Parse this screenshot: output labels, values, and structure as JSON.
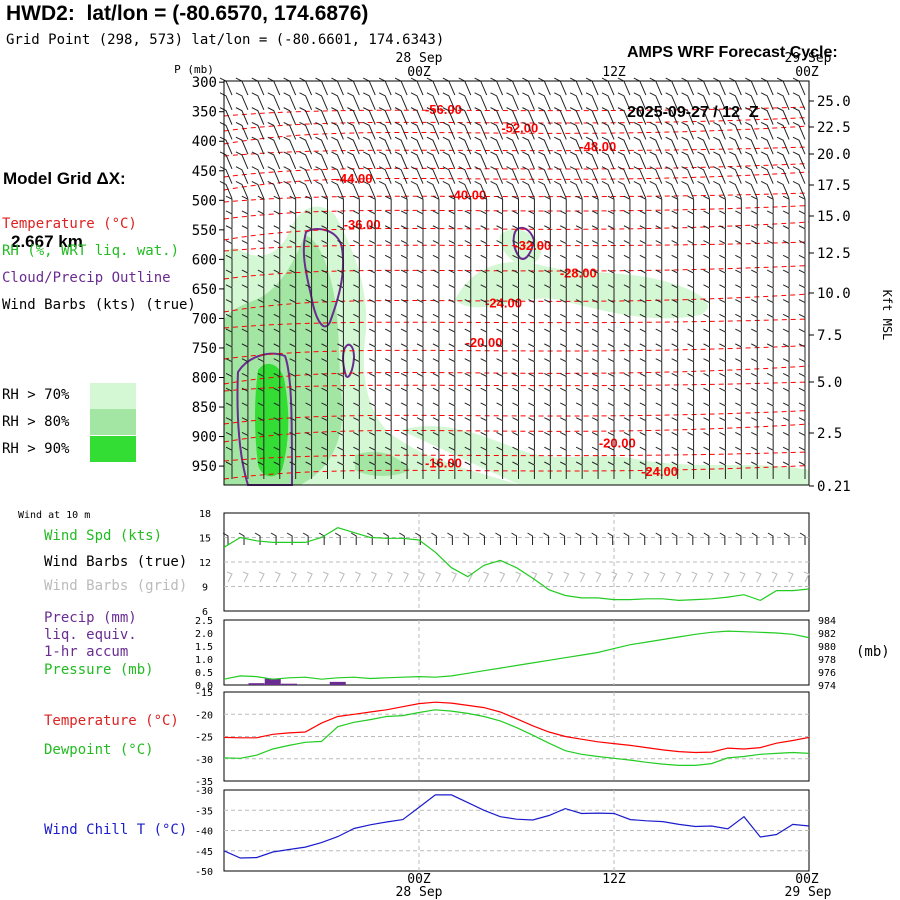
{
  "header": {
    "title": "HWD2:  lat/lon = (-80.6570, 174.6876)",
    "grid_point": "Grid Point (298, 573) lat/lon = (-80.6601, 174.6343)",
    "cycle_line1": "AMPS WRF Forecast Cycle:",
    "cycle_line2": "2025-09-27 / 12  Z",
    "model_grid_line1": "Model Grid ΔX:",
    "model_grid_line2": "2.667 km"
  },
  "legend": {
    "temperature": "Temperature (°C)",
    "rh": "RH (%, WRT liq. wat.)",
    "cloud": "Cloud/Precip Outline",
    "wind": "Wind Barbs (kts) (true)",
    "rh70": "RH > 70%",
    "rh80": "RH > 80%",
    "rh90": "RH > 90%"
  },
  "colors": {
    "temperature": "#ff0000",
    "rh_text": "#22bb22",
    "cloud": "#6a2c91",
    "rh70": "#d4f7d4",
    "rh80": "#a3e6a3",
    "rh90": "#33dd33",
    "dewpoint": "#22cc22",
    "windchill": "#1c1ccc",
    "grid_gray": "#bbbbbb"
  },
  "time_axis": {
    "top_date_left": "28 Sep",
    "top_date_right": "29 Sep",
    "ticks": [
      "00Z",
      "12Z",
      "00Z"
    ],
    "bottom_date_left": "28 Sep",
    "bottom_date_right": "29 Sep",
    "pressure_header": "P (mb)"
  },
  "panels": {
    "wind_at_10m": "Wind at 10 m",
    "wind_spd": "Wind Spd (kts)",
    "wind_barbs_true": "Wind Barbs (true)",
    "wind_barbs_grid": "Wind Barbs (grid)",
    "precip_l1": "Precip (mm)",
    "precip_l2": "liq. equiv.",
    "precip_l3": "1-hr accum",
    "pressure": "Pressure (mb)",
    "pressure_unit": "(mb)",
    "temperature": "Temperature (°C)",
    "dewpoint": "Dewpoint (°C)",
    "windchill": "Wind Chill T (°C)",
    "kft_label": "Kft MSL"
  },
  "chart_data": [
    {
      "type": "heatmap",
      "x_range_hours": [
        -12,
        24
      ],
      "y_label": "P (mb)",
      "y_ticks": [
        300,
        350,
        400,
        450,
        500,
        550,
        600,
        650,
        700,
        750,
        800,
        850,
        900,
        950
      ],
      "right_ticks": [
        "25.0",
        "22.5",
        "20.0",
        "17.5",
        "15.0",
        "12.5",
        "10.0",
        "7.5",
        "5.0",
        "2.5",
        "0.21"
      ],
      "right_label": "Kft MSL",
      "isotherm_labels": [
        {
          "label": "-56.00",
          "t": 1.5,
          "p": 347
        },
        {
          "label": "-52.00",
          "t": 6.2,
          "p": 378
        },
        {
          "label": "-48.00",
          "t": 11.0,
          "p": 410
        },
        {
          "label": "-44.00",
          "t": -4.0,
          "p": 464
        },
        {
          "label": "-40.00",
          "t": 3.0,
          "p": 492
        },
        {
          "label": "-36.00",
          "t": -3.5,
          "p": 542
        },
        {
          "label": "-32.00",
          "t": 7.0,
          "p": 577
        },
        {
          "label": "-28.00",
          "t": 9.8,
          "p": 624
        },
        {
          "label": "-24.00",
          "t": 5.2,
          "p": 675
        },
        {
          "label": "-20.00",
          "t": 4.0,
          "p": 742
        },
        {
          "label": "-20.00",
          "t": 12.2,
          "p": 912
        },
        {
          "label": "-16.00",
          "t": 1.5,
          "p": 946
        },
        {
          "label": "-24.00",
          "t": 14.8,
          "p": 960
        }
      ]
    },
    {
      "type": "line",
      "title": "Wind Spd (kts)",
      "x_hours": [
        -12,
        -11,
        -10,
        -9,
        -8,
        -7,
        -6,
        -5,
        -4,
        -3,
        -2,
        -1,
        0,
        1,
        2,
        3,
        4,
        5,
        6,
        7,
        8,
        9,
        10,
        11,
        12,
        13,
        14,
        15,
        16,
        17,
        18,
        19,
        20,
        21,
        22,
        23,
        24
      ],
      "series": [
        {
          "name": "Wind Spd (kts)",
          "values": [
            13.8,
            15.0,
            14.6,
            14.4,
            14.4,
            14.4,
            15.0,
            16.2,
            15.6,
            15.0,
            14.9,
            14.9,
            14.7,
            13.2,
            11.3,
            10.2,
            11.6,
            12.2,
            11.3,
            10.0,
            8.6,
            7.9,
            7.6,
            7.6,
            7.4,
            7.4,
            7.5,
            7.5,
            7.3,
            7.4,
            7.5,
            7.7,
            8.0,
            7.3,
            8.5,
            8.5,
            8.7
          ]
        }
      ],
      "ylim": [
        6,
        18
      ],
      "y_ticks": [
        6,
        9,
        12,
        15,
        18
      ]
    },
    {
      "type": "bar",
      "title": "Precip (mm)",
      "x_hours": [
        -11,
        -10,
        -9,
        -8,
        -7,
        -6,
        -5
      ],
      "values": [
        0.0,
        0.07,
        0.25,
        0.05,
        0.0,
        0.0,
        0.12
      ],
      "ylim": [
        0,
        2.5
      ],
      "y_ticks": [
        0.0,
        0.5,
        1.0,
        1.5,
        2.0,
        2.5
      ]
    },
    {
      "type": "line",
      "title": "Pressure (mb)",
      "x_hours": [
        -12,
        -11,
        -10,
        -9,
        -8,
        -7,
        -6,
        -5,
        -4,
        -3,
        -2,
        -1,
        0,
        1,
        2,
        3,
        4,
        5,
        6,
        7,
        8,
        9,
        10,
        11,
        12,
        13,
        14,
        15,
        16,
        17,
        18,
        19,
        20,
        21,
        22,
        23,
        24
      ],
      "series": [
        {
          "name": "Pressure (mb)",
          "values": [
            974.9,
            975.4,
            975.3,
            974.9,
            975.1,
            975.2,
            974.9,
            975.1,
            975.2,
            975.0,
            975.1,
            975.2,
            975.3,
            975.2,
            975.4,
            975.8,
            976.2,
            976.6,
            977.0,
            977.4,
            977.8,
            978.2,
            978.6,
            979.0,
            979.6,
            980.2,
            980.6,
            981.0,
            981.4,
            981.8,
            982.1,
            982.3,
            982.2,
            982.1,
            982.0,
            981.8,
            981.3
          ]
        }
      ],
      "ylim": [
        974,
        984
      ],
      "y_ticks": [
        974,
        976,
        978,
        980,
        982,
        984
      ]
    },
    {
      "type": "line",
      "title": "Temperature / Dewpoint (°C)",
      "x_hours": [
        -12,
        -11,
        -10,
        -9,
        -8,
        -7,
        -6,
        -5,
        -4,
        -3,
        -2,
        -1,
        0,
        1,
        2,
        3,
        4,
        5,
        6,
        7,
        8,
        9,
        10,
        11,
        12,
        13,
        14,
        15,
        16,
        17,
        18,
        19,
        20,
        21,
        22,
        23,
        24
      ],
      "series": [
        {
          "name": "Temperature (°C)",
          "values": [
            -25.2,
            -25.3,
            -25.3,
            -24.5,
            -24.2,
            -24.0,
            -22.0,
            -20.5,
            -20.0,
            -19.5,
            -19.0,
            -18.3,
            -17.6,
            -17.3,
            -17.5,
            -18.0,
            -18.5,
            -19.5,
            -21.0,
            -22.6,
            -24.0,
            -25.0,
            -25.6,
            -26.2,
            -26.6,
            -27.0,
            -27.5,
            -28.0,
            -28.4,
            -28.6,
            -28.5,
            -27.6,
            -27.8,
            -27.5,
            -26.5,
            -25.9,
            -25.2
          ]
        },
        {
          "name": "Dewpoint (°C)",
          "values": [
            -29.8,
            -29.9,
            -29.2,
            -27.8,
            -27.0,
            -26.3,
            -26.1,
            -22.8,
            -21.8,
            -21.2,
            -20.5,
            -20.3,
            -19.6,
            -19.0,
            -19.3,
            -19.8,
            -20.5,
            -21.5,
            -23.0,
            -24.7,
            -26.5,
            -28.2,
            -29.0,
            -29.5,
            -29.9,
            -30.3,
            -30.8,
            -31.2,
            -31.5,
            -31.5,
            -31.1,
            -29.8,
            -29.5,
            -29.0,
            -28.8,
            -28.6,
            -28.8
          ]
        }
      ],
      "ylim": [
        -35,
        -15
      ],
      "y_ticks": [
        -35,
        -30,
        -25,
        -20
      ]
    },
    {
      "type": "line",
      "title": "Wind Chill T (°C)",
      "x_hours": [
        -12,
        -11,
        -10,
        -9,
        -8,
        -7,
        -6,
        -5,
        -4,
        -3,
        -2,
        -1,
        0,
        1,
        2,
        3,
        4,
        5,
        6,
        7,
        8,
        9,
        10,
        11,
        12,
        13,
        14,
        15,
        16,
        17,
        18,
        19,
        20,
        21,
        22,
        23,
        24
      ],
      "series": [
        {
          "name": "Wind Chill T (°C)",
          "values": [
            -45.0,
            -46.8,
            -46.7,
            -45.3,
            -44.7,
            -44.1,
            -43.0,
            -41.5,
            -39.5,
            -38.6,
            -37.9,
            -37.3,
            -34.3,
            -31.2,
            -31.2,
            -33.1,
            -35.0,
            -36.6,
            -37.2,
            -37.4,
            -36.3,
            -34.6,
            -35.8,
            -35.7,
            -35.8,
            -37.3,
            -37.6,
            -37.8,
            -38.5,
            -39.0,
            -38.9,
            -39.6,
            -36.6,
            -41.6,
            -41.0,
            -38.5,
            -38.9
          ]
        }
      ],
      "ylim": [
        -50,
        -30
      ],
      "y_ticks": [
        -50,
        -45,
        -40,
        -35,
        -30
      ]
    }
  ]
}
